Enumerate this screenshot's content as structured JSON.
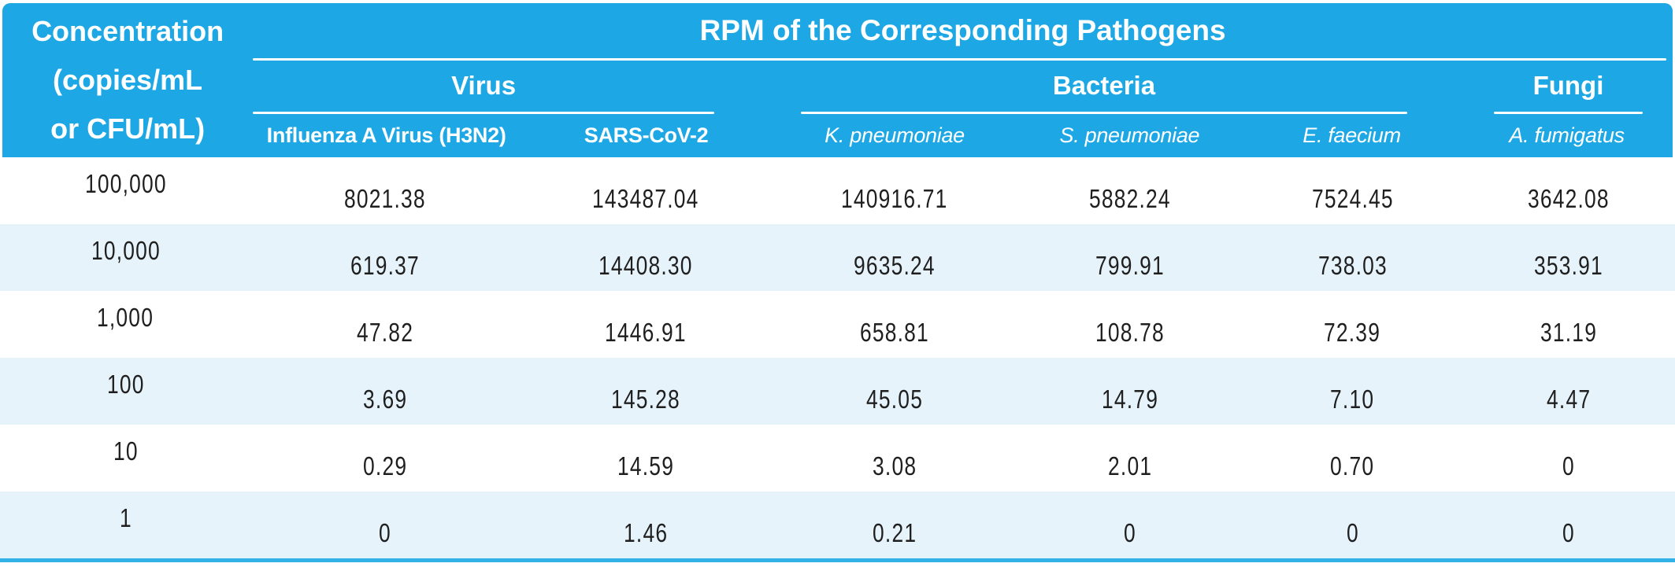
{
  "title": "RPM of the Corresponding Pathogens",
  "corner_header": {
    "lines": [
      "Concentration",
      "(copies/mL",
      "or CFU/mL)"
    ]
  },
  "groups": [
    {
      "label": "Virus"
    },
    {
      "label": "Bacteria"
    },
    {
      "label": "Fungi"
    }
  ],
  "columns": [
    {
      "label": "Influenza A Virus (H3N2)",
      "italic": false,
      "group": "Virus"
    },
    {
      "label": "SARS-CoV-2",
      "italic": false,
      "group": "Virus"
    },
    {
      "label": "K. pneumoniae",
      "italic": true,
      "group": "Bacteria"
    },
    {
      "label": "S. pneumoniae",
      "italic": true,
      "group": "Bacteria"
    },
    {
      "label": "E. faecium",
      "italic": true,
      "group": "Bacteria"
    },
    {
      "label": "A. fumigatus",
      "italic": true,
      "group": "Fungi"
    }
  ],
  "rows": [
    {
      "concentration": "100,000",
      "values": [
        "8021.38",
        "143487.04",
        "140916.71",
        "5882.24",
        "7524.45",
        "3642.08"
      ]
    },
    {
      "concentration": "10,000",
      "values": [
        "619.37",
        "14408.30",
        "9635.24",
        "799.91",
        "738.03",
        "353.91"
      ]
    },
    {
      "concentration": "1,000",
      "values": [
        "47.82",
        "1446.91",
        "658.81",
        "108.78",
        "72.39",
        "31.19"
      ]
    },
    {
      "concentration": "100",
      "values": [
        "3.69",
        "145.28",
        "45.05",
        "14.79",
        "7.10",
        "4.47"
      ]
    },
    {
      "concentration": "10",
      "values": [
        "0.29",
        "14.59",
        "3.08",
        "2.01",
        "0.70",
        "0"
      ]
    },
    {
      "concentration": "1",
      "values": [
        "0",
        "1.46",
        "0.21",
        "0",
        "0",
        "0"
      ]
    }
  ],
  "colors": {
    "header_bg": "#1DA8E5",
    "alt_row_bg": "#E7F3FB",
    "bottom_bar": "#31B1E8",
    "header_text": "#FFFFFF",
    "body_text": "#1F1F1F"
  }
}
